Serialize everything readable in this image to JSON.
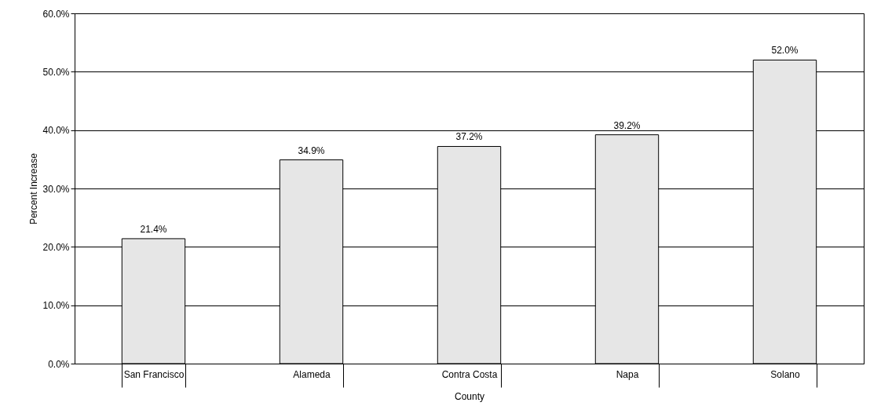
{
  "chart_data": {
    "type": "bar",
    "xlabel": "County",
    "ylabel": "Percent Increase",
    "categories": [
      "San Francisco",
      "Alameda",
      "Contra Costa",
      "Napa",
      "Solano"
    ],
    "values": [
      21.4,
      34.9,
      37.2,
      39.2,
      52.0
    ],
    "value_labels": [
      "21.4%",
      "34.9%",
      "37.2%",
      "39.2%",
      "52.0%"
    ],
    "color": "#e6e6e6",
    "ylim": [
      0,
      60
    ],
    "yticks": [
      {
        "value": 0,
        "label": "0.0%"
      },
      {
        "value": 10,
        "label": "10.0%"
      },
      {
        "value": 20,
        "label": "20.0%"
      },
      {
        "value": 30,
        "label": "30.0%"
      },
      {
        "value": 40,
        "label": "40.0%"
      },
      {
        "value": 50,
        "label": "50.0%"
      },
      {
        "value": 60,
        "label": "60.0%"
      }
    ],
    "grid": "y"
  }
}
